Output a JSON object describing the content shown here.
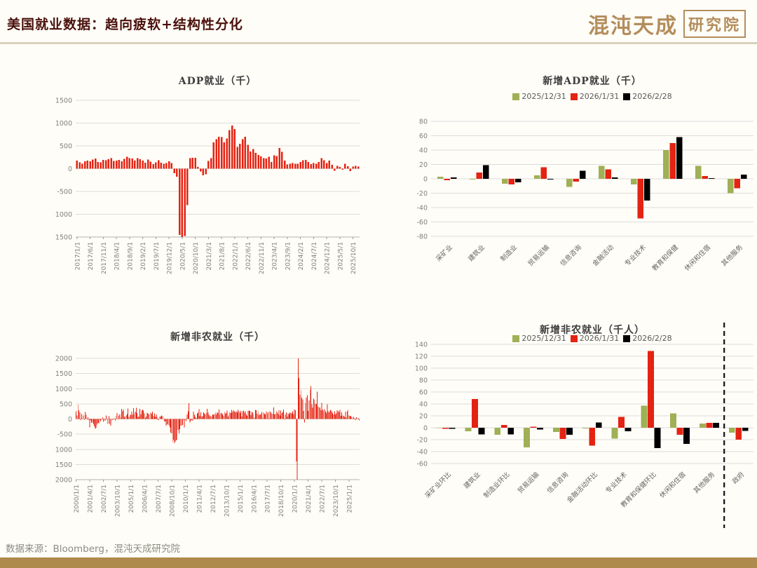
{
  "header": {
    "title": "美国就业数据：趋向疲软+结构性分化"
  },
  "logo": {
    "brand": "混沌天成",
    "seal": "研究院"
  },
  "footer": {
    "source": "数据来源：Bloomberg，混沌天成研究院"
  },
  "colors": {
    "red": "#e42313",
    "green": "#9fb055",
    "black": "#000000",
    "grid": "#dcdcdc",
    "axis_text": "#808080",
    "gold": "#b38d5c"
  },
  "chart_data": [
    {
      "type": "bar",
      "title": "ADP就业（千）",
      "ylabel": "",
      "xlabel": "",
      "ylim": [
        -1500,
        1500
      ],
      "ytick_step": 500,
      "color": "#e42313",
      "xtick_interval": 5,
      "xticklabels": [
        "2017/1/1",
        "2017/6/1",
        "2017/11/1",
        "2018/4/1",
        "2018/9/1",
        "2019/2/1",
        "2019/7/1",
        "2019/12/1",
        "2020/5/1",
        "2020/10/1",
        "2021/3/1",
        "2021/8/1",
        "2022/1/1",
        "2022/6/1",
        "2022/11/1",
        "2023/4/1",
        "2023/9/1",
        "2024/2/1",
        "2024/7/1",
        "2024/12/1",
        "2025/5/1",
        "2025/10/1"
      ],
      "start_month": "2017/1",
      "values": [
        175,
        140,
        110,
        165,
        175,
        160,
        200,
        220,
        150,
        135,
        190,
        185,
        205,
        230,
        170,
        180,
        190,
        160,
        215,
        265,
        230,
        225,
        175,
        230,
        210,
        180,
        130,
        200,
        155,
        100,
        140,
        185,
        130,
        110,
        120,
        165,
        120,
        -100,
        -180,
        -1450,
        -1500,
        -1480,
        -800,
        230,
        235,
        240,
        35,
        -60,
        -145,
        -120,
        170,
        230,
        575,
        650,
        700,
        690,
        580,
        660,
        850,
        950,
        870,
        480,
        550,
        650,
        700,
        520,
        380,
        430,
        350,
        300,
        270,
        230,
        220,
        260,
        145,
        290,
        280,
        455,
        370,
        180,
        90,
        110,
        125,
        105,
        110,
        145,
        185,
        190,
        150,
        100,
        120,
        105,
        145,
        230,
        185,
        125,
        180,
        85,
        -45,
        60,
        35,
        -25,
        105,
        55,
        -55,
        45,
        65,
        50
      ]
    },
    {
      "type": "grouped_bar",
      "title": "新增ADP就业（千）",
      "ylim": [
        -80,
        80
      ],
      "ytick_step": 20,
      "categories": [
        "采矿业",
        "建筑业",
        "制造业",
        "贸易运输",
        "信息咨询",
        "金融活动",
        "专业技术",
        "教育和保健",
        "休闲和住宿",
        "其他服务"
      ],
      "series": [
        {
          "name": "2025/12/31",
          "color": "#9fb055",
          "values": [
            3,
            -1,
            -7,
            5,
            -11,
            18,
            -8,
            40,
            18,
            -20
          ]
        },
        {
          "name": "2026/1/31",
          "color": "#e42313",
          "values": [
            -2,
            9,
            -8,
            16,
            -4,
            13,
            -55,
            50,
            4,
            -13
          ]
        },
        {
          "name": "2026/2/28",
          "color": "#000000",
          "values": [
            2,
            19,
            -5,
            -1,
            11,
            2,
            -30,
            58,
            1,
            6
          ]
        }
      ]
    },
    {
      "type": "bar",
      "title": "新增非农就业（千）",
      "ylim": [
        -2000,
        2000
      ],
      "ytick_step": 500,
      "color": "#e42313",
      "xtick_interval": 15,
      "xticklabels": [
        "2000/1/1",
        "2001/4/1",
        "2002/7/1",
        "2003/10/1",
        "2005/1/1",
        "2006/4/1",
        "2007/7/1",
        "2008/10/1",
        "2010/1/1",
        "2011/4/1",
        "2012/7/1",
        "2013/10/1",
        "2015/1/1",
        "2016/4/1",
        "2017/7/1",
        "2018/10/1",
        "2020/1/1",
        "2021/4/1",
        "2022/7/1",
        "2023/10/1",
        "2025/1/1"
      ],
      "start_month": "2000/1",
      "values": [
        250,
        120,
        470,
        290,
        220,
        -40,
        160,
        20,
        120,
        -10,
        230,
        140,
        -30,
        60,
        -40,
        -280,
        -50,
        -130,
        -120,
        -160,
        -240,
        -320,
        -290,
        -180,
        -130,
        -150,
        -25,
        -85,
        -10,
        45,
        -95,
        -15,
        -55,
        120,
        10,
        -160,
        90,
        -160,
        -215,
        -50,
        -10,
        -5,
        25,
        -45,
        100,
        200,
        15,
        120,
        160,
        45,
        340,
        250,
        310,
        80,
        45,
        120,
        160,
        350,
        65,
        130,
        135,
        240,
        140,
        360,
        170,
        245,
        370,
        195,
        65,
        85,
        335,
        155,
        280,
        315,
        280,
        180,
        30,
        80,
        205,
        185,
        155,
        5,
        205,
        170,
        240,
        90,
        190,
        75,
        145,
        75,
        -30,
        -20,
        85,
        80,
        115,
        95,
        15,
        -85,
        -80,
        -215,
        -190,
        -160,
        -210,
        -275,
        -450,
        -475,
        -765,
        -695,
        -800,
        -745,
        -700,
        -685,
        -355,
        -470,
        -330,
        -215,
        -225,
        -200,
        -10,
        -280,
        15,
        -70,
        155,
        250,
        520,
        -120,
        -60,
        -40,
        -55,
        240,
        135,
        70,
        40,
        185,
        205,
        320,
        100,
        215,
        70,
        105,
        220,
        185,
        145,
        200,
        340,
        225,
        140,
        95,
        110,
        85,
        155,
        135,
        160,
        225,
        145,
        215,
        195,
        310,
        140,
        200,
        200,
        145,
        105,
        240,
        185,
        200,
        275,
        85,
        145,
        220,
        200,
        305,
        230,
        285,
        250,
        215,
        250,
        220,
        300,
        255,
        200,
        265,
        85,
        250,
        275,
        205,
        250,
        150,
        100,
        270,
        280,
        270,
        125,
        235,
        225,
        150,
        45,
        295,
        290,
        175,
        250,
        125,
        165,
        155,
        230,
        50,
        205,
        175,
        145,
        240,
        190,
        220,
        15,
        260,
        215,
        175,
        170,
        380,
        155,
        175,
        270,
        215,
        165,
        285,
        120,
        275,
        195,
        235,
        310,
        0,
        150,
        215,
        85,
        180,
        165,
        210,
        210,
        185,
        260,
        160,
        315,
        290,
        -1400,
        -2000,
        2000,
        1350,
        800,
        950,
        700,
        650,
        265,
        -115,
        520,
        710,
        785,
        270,
        615,
        960,
        1090,
        480,
        370,
        670,
        640,
        510,
        500,
        900,
        400,
        370,
        385,
        290,
        530,
        315,
        260,
        325,
        255,
        195,
        480,
        250,
        215,
        280,
        300,
        240,
        180,
        155,
        250,
        150,
        180,
        290,
        255,
        235,
        305,
        105,
        215,
        120,
        90,
        75,
        240,
        45,
        260,
        310,
        110,
        95,
        105,
        60,
        15,
        75,
        25,
        -30,
        55,
        -25,
        40,
        -50
      ]
    },
    {
      "type": "grouped_bar",
      "title": "新增非农就业（千人）",
      "ylim": [
        -60,
        140
      ],
      "ytick_step": 20,
      "separator_after_index": 9,
      "categories": [
        "采矿业环比",
        "建筑业",
        "制造业环比",
        "贸易运输",
        "信息咨询",
        "金融活动环比",
        "专业技术",
        "教育和保健环比",
        "休闲和住宿",
        "其他服务",
        "政府"
      ],
      "series": [
        {
          "name": "2025/12/31",
          "color": "#9fb055",
          "values": [
            0,
            -6,
            -12,
            -33,
            -7,
            -1,
            -18,
            37,
            24,
            7,
            -8
          ]
        },
        {
          "name": "2026/1/31",
          "color": "#e42313",
          "values": [
            -2,
            48,
            5,
            2,
            -19,
            -30,
            18,
            129,
            -12,
            8,
            -20
          ]
        },
        {
          "name": "2026/2/28",
          "color": "#000000",
          "values": [
            -2,
            -11,
            -11,
            -3,
            -12,
            9,
            -6,
            -34,
            -27,
            8,
            -5
          ]
        }
      ]
    }
  ]
}
